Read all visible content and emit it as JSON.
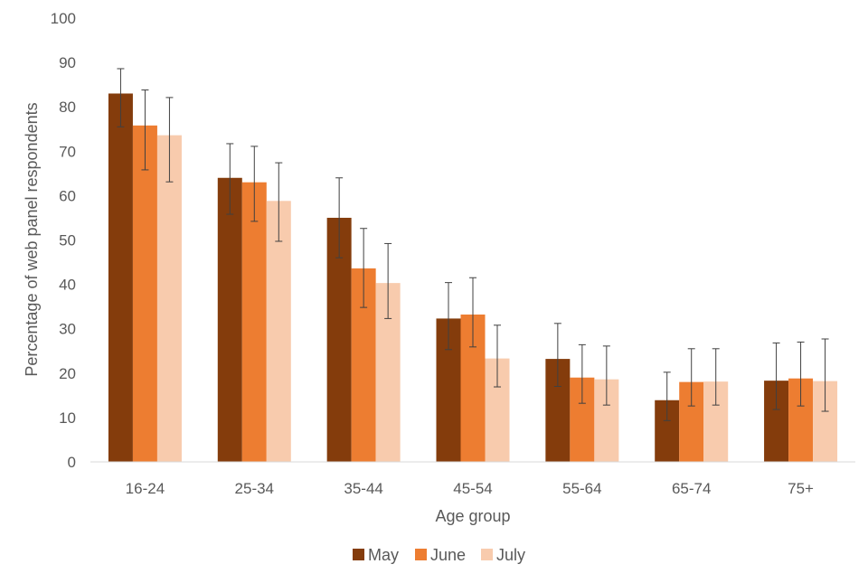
{
  "chart_data": {
    "type": "bar",
    "title": "",
    "xlabel": "Age group",
    "ylabel": "Percentage of web panel respondents",
    "ylim": [
      0,
      100
    ],
    "yticks": [
      0,
      10,
      20,
      30,
      40,
      50,
      60,
      70,
      80,
      90,
      100
    ],
    "grid": false,
    "legend_position": "bottom",
    "categories": [
      "16-24",
      "25-34",
      "35-44",
      "45-54",
      "55-64",
      "65-74",
      "75+"
    ],
    "series": [
      {
        "name": "May",
        "color": "#843C0C",
        "values": [
          83,
          64,
          55,
          32.3,
          23.2,
          13.9,
          18.3
        ],
        "error_low": [
          75.5,
          55.8,
          46,
          25.3,
          17,
          9.3,
          11.8
        ],
        "error_high": [
          88.6,
          71.7,
          64,
          40.4,
          31.2,
          20.2,
          26.8
        ]
      },
      {
        "name": "June",
        "color": "#ED7D31",
        "values": [
          75.8,
          63,
          43.6,
          33.2,
          19,
          18,
          18.8
        ],
        "error_low": [
          65.8,
          54.2,
          34.8,
          25.9,
          13.2,
          12.6,
          12.6
        ],
        "error_high": [
          83.8,
          71.1,
          52.6,
          41.5,
          26.4,
          25.5,
          27
        ]
      },
      {
        "name": "July",
        "color": "#F8CBAD",
        "values": [
          73.6,
          58.8,
          40.3,
          23.3,
          18.6,
          18.1,
          18.2
        ],
        "error_low": [
          63.1,
          49.7,
          32.3,
          16.9,
          12.8,
          12.8,
          11.4
        ],
        "error_high": [
          82.1,
          67.4,
          49.2,
          30.8,
          26.1,
          25.5,
          27.7
        ]
      }
    ]
  }
}
